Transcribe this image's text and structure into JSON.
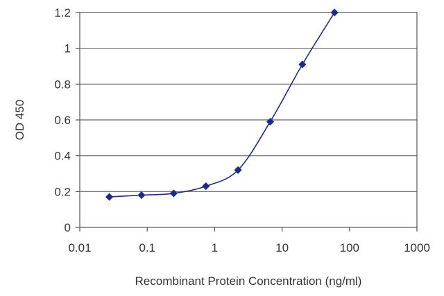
{
  "chart_data": {
    "type": "line",
    "title": "",
    "xlabel": "Recombinant Protein Concentration (ng/ml)",
    "ylabel": "OD 450",
    "x_scale": "log",
    "xlim": [
      0.01,
      1000
    ],
    "ylim": [
      0,
      1.2
    ],
    "x_ticks": [
      0.01,
      0.1,
      1,
      10,
      100,
      1000
    ],
    "x_tick_labels": [
      "0.01",
      "0.1",
      "1",
      "10",
      "100",
      "1000"
    ],
    "y_ticks": [
      0,
      0.2,
      0.4,
      0.6,
      0.8,
      1,
      1.2
    ],
    "y_tick_labels": [
      "0",
      "0.2",
      "0.4",
      "0.6",
      "0.8",
      "1",
      "1.2"
    ],
    "grid": "horizontal",
    "legend": "none",
    "series": [
      {
        "color": "#1c2a8c",
        "marker": "diamond",
        "x": [
          0.0274,
          0.0823,
          0.247,
          0.741,
          2.22,
          6.67,
          20,
          60
        ],
        "y": [
          0.17,
          0.18,
          0.19,
          0.23,
          0.32,
          0.59,
          0.91,
          1.2
        ]
      }
    ]
  }
}
